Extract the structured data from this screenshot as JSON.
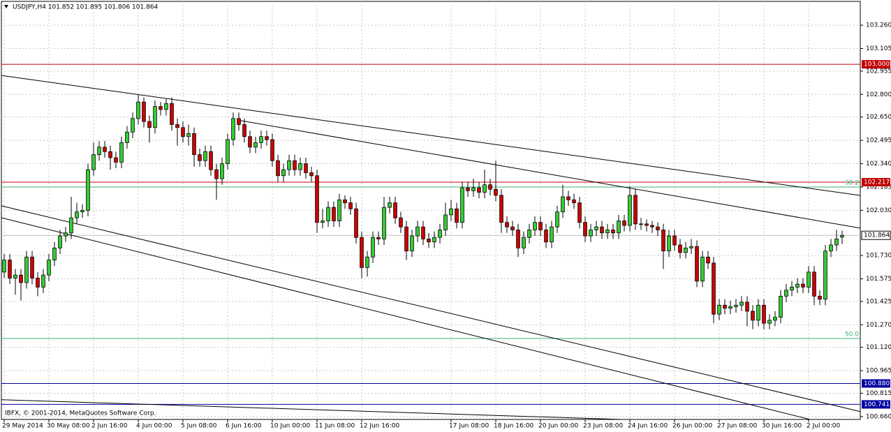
{
  "chart_data": {
    "type": "candlestick",
    "title": "USDJPY,H4  101.852 101.895 101.806 101.864",
    "footer": "IBFX, © 2001-2014, MetaQuotes Software Corp.",
    "up_color": "#33cc33",
    "down_color": "#cc0000",
    "grid": true,
    "xlim": [
      -0.5,
      153.25
    ],
    "ylim": [
      100.641,
      103.418
    ],
    "yticks": [
      {
        "value": 103.26,
        "label": "103.260"
      },
      {
        "value": 103.105,
        "label": "103.105"
      },
      {
        "value": 102.955,
        "label": "102.955"
      },
      {
        "value": 102.8,
        "label": "102.800"
      },
      {
        "value": 102.65,
        "label": "102.650"
      },
      {
        "value": 102.495,
        "label": "102.495"
      },
      {
        "value": 102.34,
        "label": "102.340"
      },
      {
        "value": 102.185,
        "label": "102.185"
      },
      {
        "value": 102.03,
        "label": "102.030"
      },
      {
        "value": 101.73,
        "label": "101.730"
      },
      {
        "value": 101.575,
        "label": "101.575"
      },
      {
        "value": 101.425,
        "label": "101.425"
      },
      {
        "value": 101.27,
        "label": "101.270"
      },
      {
        "value": 101.12,
        "label": "101.120"
      },
      {
        "value": 100.965,
        "label": "100.965"
      },
      {
        "value": 100.815,
        "label": "100.815"
      },
      {
        "value": 100.66,
        "label": "100.660"
      }
    ],
    "xticks": [
      {
        "value": 0,
        "label": "29 May 2014"
      },
      {
        "value": 8,
        "label": "30 May 08:00"
      },
      {
        "value": 16,
        "label": "2 Jun 16:00"
      },
      {
        "value": 24,
        "label": "4 Jun 00:00"
      },
      {
        "value": 32,
        "label": "5 Jun 08:00"
      },
      {
        "value": 40,
        "label": "6 Jun 16:00"
      },
      {
        "value": 48,
        "label": "10 Jun 00:00"
      },
      {
        "value": 56,
        "label": "11 Jun 08:00"
      },
      {
        "value": 64,
        "label": "12 Jun 16:00"
      },
      {
        "value": 80,
        "label": "17 Jun 08:00"
      },
      {
        "value": 88,
        "label": "18 Jun 16:00"
      },
      {
        "value": 96,
        "label": "20 Jun 00:00"
      },
      {
        "value": 104,
        "label": "23 Jun 08:00"
      },
      {
        "value": 112,
        "label": "24 Jun 16:00"
      },
      {
        "value": 120,
        "label": "26 Jun 00:00"
      },
      {
        "value": 128,
        "label": "27 Jun 08:00"
      },
      {
        "value": 136,
        "label": "30 Jun 16:00"
      },
      {
        "value": 144,
        "label": "2 Jul 00:00"
      }
    ],
    "open": [
      101.62,
      101.7,
      101.58,
      101.6,
      101.55,
      101.72,
      101.58,
      101.52,
      101.6,
      101.7,
      101.78,
      101.86,
      101.88,
      101.98,
      102.02,
      102.03,
      102.3,
      102.4,
      102.45,
      102.42,
      102.38,
      102.35,
      102.48,
      102.55,
      102.64,
      102.75,
      102.62,
      102.58,
      102.72,
      102.7,
      102.74,
      102.6,
      102.58,
      102.52,
      102.54,
      102.4,
      102.36,
      102.42,
      102.3,
      102.24,
      102.34,
      102.5,
      102.64,
      102.6,
      102.52,
      102.45,
      102.48,
      102.52,
      102.5,
      102.36,
      102.26,
      102.3,
      102.36,
      102.3,
      102.34,
      102.28,
      102.26,
      101.95,
      101.96,
      102.05,
      101.96,
      102.1,
      102.08,
      102.04,
      101.85,
      101.65,
      101.72,
      101.85,
      101.84,
      102.05,
      102.08,
      101.98,
      101.92,
      101.76,
      101.86,
      101.92,
      101.84,
      101.82,
      101.85,
      101.9,
      102.0,
      102.04,
      101.95,
      102.18,
      102.16,
      102.18,
      102.15,
      102.2,
      102.17,
      102.13,
      101.95,
      101.92,
      101.9,
      101.78,
      101.85,
      101.9,
      101.95,
      101.9,
      101.82,
      101.92,
      102.02,
      102.12,
      102.1,
      102.08,
      101.95,
      101.86,
      101.9,
      101.92,
      101.88,
      101.9,
      101.88,
      101.96,
      101.93,
      102.13,
      101.94,
      101.94,
      101.93,
      101.92,
      101.9,
      101.76,
      101.86,
      101.8,
      101.75,
      101.78,
      101.79,
      101.56,
      101.72,
      101.68,
      101.34,
      101.4,
      101.38,
      101.39,
      101.4,
      101.42,
      101.36,
      101.3,
      101.4,
      101.28,
      101.3,
      101.32,
      101.46,
      101.5,
      101.52,
      101.54,
      101.52,
      101.62,
      101.46,
      101.44,
      101.76,
      101.8,
      101.852
    ],
    "high": [
      101.74,
      101.74,
      101.64,
      101.64,
      101.76,
      101.76,
      101.62,
      101.64,
      101.74,
      101.82,
      101.9,
      101.92,
      102.12,
      102.08,
      102.07,
      102.34,
      102.48,
      102.49,
      102.49,
      102.46,
      102.42,
      102.52,
      102.59,
      102.68,
      102.8,
      102.78,
      102.66,
      102.76,
      102.75,
      102.77,
      102.78,
      102.64,
      102.62,
      102.6,
      102.58,
      102.44,
      102.46,
      102.46,
      102.34,
      102.38,
      102.54,
      102.68,
      102.68,
      102.64,
      102.56,
      102.52,
      102.56,
      102.56,
      102.54,
      102.4,
      102.34,
      102.4,
      102.4,
      102.38,
      102.38,
      102.32,
      102.3,
      102.04,
      102.09,
      102.09,
      102.14,
      102.13,
      102.12,
      102.08,
      101.89,
      101.76,
      101.89,
      101.89,
      102.12,
      102.12,
      102.12,
      102.02,
      101.96,
      101.9,
      101.96,
      101.96,
      101.88,
      101.89,
      101.94,
      102.08,
      102.1,
      102.08,
      102.22,
      102.22,
      102.24,
      102.22,
      102.3,
      102.24,
      102.36,
      102.17,
      101.99,
      101.96,
      101.94,
      101.89,
      101.94,
      101.99,
      101.99,
      101.94,
      101.96,
      102.06,
      102.2,
      102.16,
      102.14,
      102.12,
      101.99,
      101.94,
      101.96,
      101.96,
      101.94,
      101.94,
      102.0,
      102.0,
      102.19,
      102.17,
      101.98,
      101.97,
      101.96,
      101.95,
      101.94,
      101.9,
      101.9,
      101.84,
      101.82,
      101.84,
      101.83,
      101.76,
      101.76,
      101.72,
      101.44,
      101.44,
      101.43,
      101.44,
      101.46,
      101.46,
      101.4,
      101.44,
      101.44,
      101.34,
      101.36,
      101.5,
      101.54,
      101.56,
      101.58,
      101.58,
      101.66,
      101.66,
      101.5,
      101.8,
      101.84,
      101.9,
      101.895
    ],
    "low": [
      101.58,
      101.54,
      101.47,
      101.43,
      101.51,
      101.54,
      101.46,
      101.48,
      101.56,
      101.66,
      101.74,
      101.82,
      101.84,
      101.94,
      101.98,
      101.99,
      102.26,
      102.36,
      102.38,
      102.3,
      102.31,
      102.31,
      102.44,
      102.51,
      102.6,
      102.58,
      102.48,
      102.54,
      102.66,
      102.66,
      102.56,
      102.46,
      102.48,
      102.46,
      102.32,
      102.32,
      102.32,
      102.26,
      102.1,
      102.2,
      102.3,
      102.46,
      102.56,
      102.48,
      102.41,
      102.41,
      102.44,
      102.46,
      102.32,
      102.22,
      102.22,
      102.26,
      102.26,
      102.26,
      102.24,
      102.22,
      101.88,
      101.91,
      101.92,
      101.92,
      101.92,
      102.04,
      102.0,
      101.81,
      101.58,
      101.59,
      101.68,
      101.8,
      101.8,
      102.01,
      101.94,
      101.88,
      101.7,
      101.72,
      101.82,
      101.8,
      101.78,
      101.78,
      101.81,
      101.86,
      101.96,
      101.91,
      101.91,
      102.12,
      102.12,
      102.11,
      102.11,
      102.13,
      102.09,
      101.88,
      101.88,
      101.86,
      101.72,
      101.74,
      101.81,
      101.86,
      101.86,
      101.78,
      101.78,
      101.88,
      101.98,
      102.06,
      102.04,
      101.91,
      101.82,
      101.82,
      101.86,
      101.84,
      101.84,
      101.84,
      101.84,
      101.89,
      101.89,
      101.9,
      101.9,
      101.89,
      101.88,
      101.86,
      101.64,
      101.72,
      101.76,
      101.71,
      101.71,
      101.74,
      101.52,
      101.52,
      101.64,
      101.28,
      101.3,
      101.34,
      101.34,
      101.35,
      101.36,
      101.26,
      101.24,
      101.26,
      101.24,
      101.24,
      101.26,
      101.28,
      101.42,
      101.46,
      101.48,
      101.48,
      101.48,
      101.4,
      101.4,
      101.4,
      101.72,
      101.76,
      101.806
    ],
    "close": [
      101.7,
      101.58,
      101.6,
      101.55,
      101.72,
      101.58,
      101.52,
      101.6,
      101.7,
      101.78,
      101.86,
      101.88,
      101.98,
      102.02,
      102.03,
      102.3,
      102.4,
      102.45,
      102.42,
      102.38,
      102.35,
      102.48,
      102.55,
      102.64,
      102.75,
      102.62,
      102.58,
      102.72,
      102.7,
      102.74,
      102.6,
      102.58,
      102.52,
      102.54,
      102.4,
      102.36,
      102.42,
      102.3,
      102.24,
      102.34,
      102.5,
      102.64,
      102.6,
      102.52,
      102.45,
      102.48,
      102.52,
      102.5,
      102.36,
      102.26,
      102.3,
      102.36,
      102.3,
      102.34,
      102.28,
      102.26,
      101.95,
      101.96,
      102.05,
      101.96,
      102.1,
      102.08,
      102.04,
      101.85,
      101.65,
      101.72,
      101.85,
      101.84,
      102.05,
      102.08,
      101.98,
      101.92,
      101.76,
      101.86,
      101.92,
      101.84,
      101.82,
      101.85,
      101.9,
      102.0,
      102.04,
      101.95,
      102.18,
      102.16,
      102.18,
      102.15,
      102.2,
      102.17,
      102.13,
      101.95,
      101.92,
      101.9,
      101.78,
      101.85,
      101.9,
      101.95,
      101.9,
      101.82,
      101.92,
      102.02,
      102.12,
      102.1,
      102.08,
      101.95,
      101.86,
      101.9,
      101.92,
      101.88,
      101.9,
      101.88,
      101.96,
      101.93,
      102.13,
      101.94,
      101.94,
      101.93,
      101.92,
      101.9,
      101.76,
      101.86,
      101.8,
      101.75,
      101.78,
      101.79,
      101.56,
      101.72,
      101.68,
      101.34,
      101.4,
      101.38,
      101.39,
      101.4,
      101.42,
      101.36,
      101.3,
      101.4,
      101.28,
      101.3,
      101.32,
      101.46,
      101.5,
      101.52,
      101.54,
      101.52,
      101.62,
      101.46,
      101.44,
      101.76,
      101.8,
      101.84,
      101.864
    ],
    "current_price": {
      "value": 101.864,
      "label": "101.864"
    },
    "levels": [
      {
        "value": 103.0,
        "label": "103.000",
        "color": "#c00000"
      },
      {
        "value": 102.217,
        "label": "102.217",
        "color": "#c00000"
      },
      {
        "value": 100.88,
        "label": "100.880",
        "color": "#0000a0"
      },
      {
        "value": 100.741,
        "label": "100.741",
        "color": "#0000a0"
      }
    ],
    "fib_levels": [
      {
        "value": 102.185,
        "label": "38.2",
        "color": "#3cb371"
      },
      {
        "value": 101.179,
        "label": "50.0",
        "color": "#3cb371"
      }
    ],
    "trendlines": [
      {
        "x": [
          -0.5,
          153.25
        ],
        "y": [
          102.926,
          102.129
        ]
      },
      {
        "x": [
          41.75,
          153.25
        ],
        "y": [
          102.63,
          101.912
        ]
      },
      {
        "x": [
          -0.5,
          153.25
        ],
        "y": [
          102.06,
          100.693
        ]
      },
      {
        "x": [
          -0.5,
          144.25
        ],
        "y": [
          101.981,
          100.641
        ]
      },
      {
        "x": [
          -0.5,
          110.5
        ],
        "y": [
          100.772,
          100.641
        ]
      }
    ]
  }
}
